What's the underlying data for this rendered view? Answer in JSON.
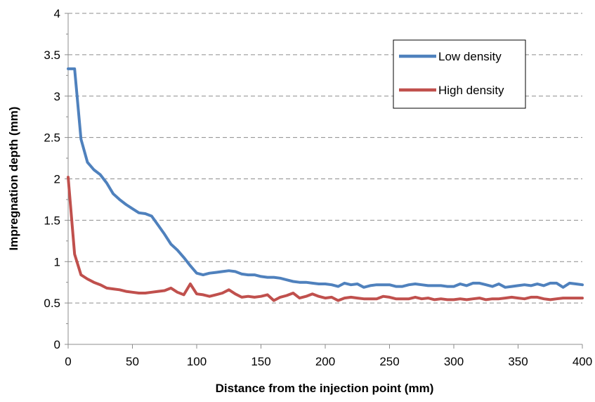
{
  "chart_data": {
    "type": "line",
    "title": "",
    "xlabel": "Distance from the injection point (mm)",
    "ylabel": "Impregnation depth (mm)",
    "xlim": [
      0,
      400
    ],
    "ylim": [
      0,
      4
    ],
    "xticks": [
      0,
      50,
      100,
      150,
      200,
      250,
      300,
      350,
      400
    ],
    "yticks": [
      0,
      0.5,
      1,
      1.5,
      2,
      2.5,
      3,
      3.5,
      4
    ],
    "xtick_labels": [
      "0",
      "50",
      "100",
      "150",
      "200",
      "250",
      "300",
      "350",
      "400"
    ],
    "ytick_labels": [
      "0",
      "0.5",
      "1",
      "1.5",
      "2",
      "2.5",
      "3",
      "3.5",
      "4"
    ],
    "grid": "horizontal-dashed",
    "legend_position": "top-right",
    "series": [
      {
        "name": "Low density",
        "color": "#4F81BD",
        "x": [
          0,
          5,
          10,
          15,
          20,
          25,
          30,
          35,
          40,
          45,
          50,
          55,
          60,
          65,
          70,
          75,
          80,
          85,
          90,
          95,
          100,
          105,
          110,
          115,
          120,
          125,
          130,
          135,
          140,
          145,
          150,
          155,
          160,
          165,
          170,
          175,
          180,
          185,
          190,
          195,
          200,
          205,
          210,
          215,
          220,
          225,
          230,
          235,
          240,
          245,
          250,
          255,
          260,
          265,
          270,
          275,
          280,
          285,
          290,
          295,
          300,
          305,
          310,
          315,
          320,
          325,
          330,
          335,
          340,
          345,
          350,
          355,
          360,
          365,
          370,
          375,
          380,
          385,
          390,
          395,
          400
        ],
        "y": [
          3.33,
          3.33,
          2.48,
          2.2,
          2.11,
          2.05,
          1.95,
          1.82,
          1.75,
          1.69,
          1.64,
          1.59,
          1.58,
          1.55,
          1.44,
          1.33,
          1.21,
          1.14,
          1.05,
          0.95,
          0.86,
          0.84,
          0.86,
          0.87,
          0.88,
          0.89,
          0.88,
          0.85,
          0.84,
          0.84,
          0.82,
          0.81,
          0.81,
          0.8,
          0.78,
          0.76,
          0.75,
          0.75,
          0.74,
          0.73,
          0.73,
          0.72,
          0.7,
          0.74,
          0.72,
          0.73,
          0.69,
          0.71,
          0.72,
          0.72,
          0.72,
          0.7,
          0.7,
          0.72,
          0.73,
          0.72,
          0.71,
          0.71,
          0.71,
          0.7,
          0.7,
          0.73,
          0.71,
          0.74,
          0.74,
          0.72,
          0.7,
          0.73,
          0.69,
          0.7,
          0.71,
          0.72,
          0.71,
          0.73,
          0.71,
          0.74,
          0.74,
          0.69,
          0.74,
          0.73,
          0.72
        ]
      },
      {
        "name": "High density",
        "color": "#C0504D",
        "x": [
          0,
          5,
          10,
          15,
          20,
          25,
          30,
          35,
          40,
          45,
          50,
          55,
          60,
          65,
          70,
          75,
          80,
          85,
          90,
          95,
          100,
          105,
          110,
          115,
          120,
          125,
          130,
          135,
          140,
          145,
          150,
          155,
          160,
          165,
          170,
          175,
          180,
          185,
          190,
          195,
          200,
          205,
          210,
          215,
          220,
          225,
          230,
          235,
          240,
          245,
          250,
          255,
          260,
          265,
          270,
          275,
          280,
          285,
          290,
          295,
          300,
          305,
          310,
          315,
          320,
          325,
          330,
          335,
          340,
          345,
          350,
          355,
          360,
          365,
          370,
          375,
          380,
          385,
          390,
          395,
          400
        ],
        "y": [
          2.02,
          1.09,
          0.84,
          0.79,
          0.75,
          0.72,
          0.68,
          0.67,
          0.66,
          0.64,
          0.63,
          0.62,
          0.62,
          0.63,
          0.64,
          0.65,
          0.68,
          0.63,
          0.6,
          0.73,
          0.61,
          0.6,
          0.58,
          0.6,
          0.62,
          0.66,
          0.61,
          0.57,
          0.58,
          0.57,
          0.58,
          0.6,
          0.53,
          0.57,
          0.59,
          0.62,
          0.56,
          0.58,
          0.61,
          0.58,
          0.56,
          0.57,
          0.53,
          0.56,
          0.57,
          0.56,
          0.55,
          0.55,
          0.55,
          0.58,
          0.57,
          0.55,
          0.55,
          0.55,
          0.57,
          0.55,
          0.56,
          0.54,
          0.55,
          0.54,
          0.54,
          0.55,
          0.54,
          0.55,
          0.56,
          0.54,
          0.55,
          0.55,
          0.56,
          0.57,
          0.56,
          0.55,
          0.57,
          0.57,
          0.55,
          0.54,
          0.55,
          0.56,
          0.56,
          0.56,
          0.56
        ]
      }
    ]
  }
}
